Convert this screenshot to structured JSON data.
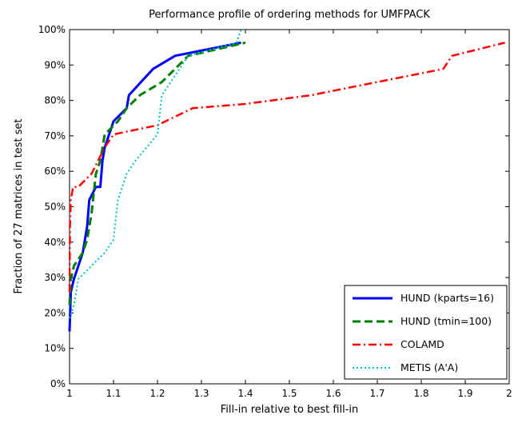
{
  "chart_data": {
    "type": "line",
    "title": "Performance profile of ordering methods for UMFPACK",
    "xlabel": "Fill-in relative to best fill-in",
    "ylabel": "Fraction of 27 matrices in test set",
    "xlim": [
      1,
      2
    ],
    "ylim": [
      0,
      100
    ],
    "xticks": [
      1,
      1.1,
      1.2,
      1.3,
      1.4,
      1.5,
      1.6,
      1.7,
      1.8,
      1.9,
      2
    ],
    "xtick_labels": [
      "1",
      "1.1",
      "1.2",
      "1.3",
      "1.4",
      "1.5",
      "1.6",
      "1.7",
      "1.8",
      "1.9",
      "2"
    ],
    "yticks": [
      0,
      10,
      20,
      30,
      40,
      50,
      60,
      70,
      80,
      90,
      100
    ],
    "ytick_labels": [
      "0%",
      "10%",
      "20%",
      "30%",
      "40%",
      "50%",
      "60%",
      "70%",
      "80%",
      "90%",
      "100%"
    ],
    "grid": false,
    "legend_position": "bottom-right",
    "series": [
      {
        "name": "HUND (kparts=16)",
        "color": "#0000ff",
        "dash": "solid",
        "points": [
          [
            1.0,
            14.8
          ],
          [
            1.003,
            25.9
          ],
          [
            1.01,
            29.6
          ],
          [
            1.02,
            33.3
          ],
          [
            1.03,
            37.0
          ],
          [
            1.04,
            44.4
          ],
          [
            1.045,
            51.9
          ],
          [
            1.06,
            55.6
          ],
          [
            1.07,
            55.6
          ],
          [
            1.075,
            63.0
          ],
          [
            1.08,
            66.7
          ],
          [
            1.09,
            70.4
          ],
          [
            1.1,
            74.1
          ],
          [
            1.13,
            77.8
          ],
          [
            1.135,
            81.5
          ],
          [
            1.19,
            88.9
          ],
          [
            1.24,
            92.6
          ],
          [
            1.39,
            96.3
          ]
        ]
      },
      {
        "name": "HUND (tmin=100)",
        "color": "#007f00",
        "dash": "dashed",
        "points": [
          [
            1.0,
            22.2
          ],
          [
            1.003,
            29.6
          ],
          [
            1.01,
            33.3
          ],
          [
            1.03,
            37.0
          ],
          [
            1.04,
            40.7
          ],
          [
            1.05,
            48.1
          ],
          [
            1.06,
            59.3
          ],
          [
            1.07,
            63.0
          ],
          [
            1.08,
            70.4
          ],
          [
            1.11,
            74.1
          ],
          [
            1.13,
            77.8
          ],
          [
            1.16,
            81.5
          ],
          [
            1.21,
            85.2
          ],
          [
            1.24,
            88.9
          ],
          [
            1.27,
            92.6
          ],
          [
            1.4,
            96.3
          ]
        ]
      },
      {
        "name": "COLAMD",
        "color": "#ff0000",
        "dash": "dashdot",
        "points": [
          [
            1.0,
            25.9
          ],
          [
            1.001,
            44.4
          ],
          [
            1.003,
            51.9
          ],
          [
            1.008,
            55.6
          ],
          [
            1.02,
            55.6
          ],
          [
            1.05,
            59.3
          ],
          [
            1.08,
            66.7
          ],
          [
            1.1,
            70.4
          ],
          [
            1.2,
            73.0
          ],
          [
            1.28,
            77.8
          ],
          [
            1.4,
            79.0
          ],
          [
            1.55,
            81.5
          ],
          [
            1.7,
            85.2
          ],
          [
            1.85,
            88.9
          ],
          [
            1.87,
            92.6
          ],
          [
            1.99,
            96.3
          ]
        ]
      },
      {
        "name": "METIS (A'A)",
        "color": "#00bfbf",
        "dash": "dotted",
        "points": [
          [
            1.0,
            18.5
          ],
          [
            1.01,
            22.2
          ],
          [
            1.02,
            29.6
          ],
          [
            1.05,
            33.3
          ],
          [
            1.08,
            37.0
          ],
          [
            1.1,
            40.7
          ],
          [
            1.11,
            51.9
          ],
          [
            1.13,
            59.3
          ],
          [
            1.15,
            63.0
          ],
          [
            1.2,
            70.4
          ],
          [
            1.21,
            81.5
          ],
          [
            1.23,
            85.2
          ],
          [
            1.25,
            88.9
          ],
          [
            1.27,
            92.6
          ],
          [
            1.38,
            96.3
          ],
          [
            1.39,
            100
          ]
        ]
      }
    ]
  }
}
